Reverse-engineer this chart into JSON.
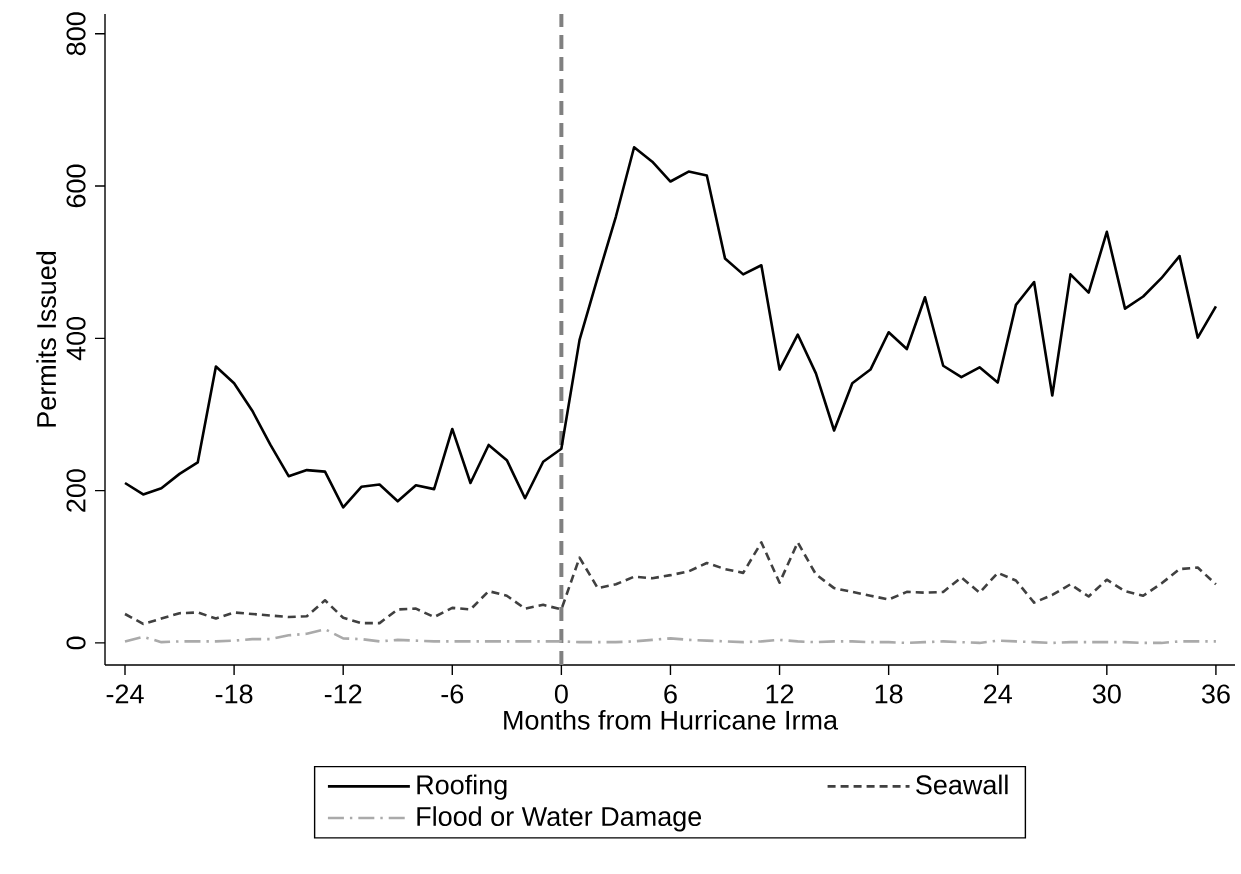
{
  "chart_data": {
    "type": "line",
    "xlabel": "Months from Hurricane Irma",
    "ylabel": "Permits Issued",
    "x": [
      -24,
      -23,
      -22,
      -21,
      -20,
      -19,
      -18,
      -17,
      -16,
      -15,
      -14,
      -13,
      -12,
      -11,
      -10,
      -9,
      -8,
      -7,
      -6,
      -5,
      -4,
      -3,
      -2,
      -1,
      0,
      1,
      2,
      3,
      4,
      5,
      6,
      7,
      8,
      9,
      10,
      11,
      12,
      13,
      14,
      15,
      16,
      17,
      18,
      19,
      20,
      21,
      22,
      23,
      24,
      25,
      26,
      27,
      28,
      29,
      30,
      31,
      32,
      33,
      34,
      35,
      36
    ],
    "series": [
      {
        "name": "Roofing",
        "color": "#000000",
        "line_style": "solid",
        "values": [
          210,
          195,
          203,
          222,
          237,
          363,
          341,
          305,
          260,
          219,
          227,
          225,
          178,
          205,
          208,
          186,
          207,
          202,
          281,
          210,
          260,
          240,
          190,
          238,
          255,
          398,
          480,
          560,
          651,
          632,
          606,
          619,
          614,
          505,
          484,
          496,
          359,
          405,
          354,
          279,
          341,
          359,
          408,
          386,
          454,
          364,
          349,
          362,
          342,
          444,
          474,
          325,
          484,
          460,
          540,
          439,
          455,
          479,
          508,
          401,
          442
        ]
      },
      {
        "name": "Seawall",
        "color": "#404040",
        "line_style": "dashed",
        "values": [
          38,
          25,
          32,
          39,
          40,
          32,
          40,
          38,
          36,
          34,
          35,
          56,
          33,
          26,
          26,
          44,
          45,
          34,
          46,
          44,
          68,
          62,
          45,
          50,
          44,
          112,
          72,
          77,
          87,
          85,
          89,
          94,
          105,
          97,
          92,
          132,
          79,
          132,
          90,
          72,
          67,
          62,
          57,
          67,
          66,
          67,
          86,
          66,
          92,
          82,
          53,
          63,
          77,
          61,
          83,
          68,
          62,
          78,
          97,
          99,
          77
        ]
      },
      {
        "name": "Flood or Water Damage",
        "color": "#aaaaaa",
        "line_style": "dashdot",
        "values": [
          2,
          8,
          1,
          2,
          2,
          2,
          3,
          5,
          5,
          10,
          12,
          18,
          6,
          5,
          2,
          4,
          3,
          2,
          2,
          2,
          2,
          2,
          2,
          2,
          2,
          1,
          1,
          1,
          2,
          4,
          6,
          4,
          3,
          2,
          1,
          2,
          4,
          2,
          1,
          2,
          2,
          1,
          1,
          0,
          1,
          2,
          1,
          0,
          3,
          2,
          1,
          0,
          1,
          1,
          1,
          1,
          0,
          0,
          2,
          2,
          2
        ]
      }
    ],
    "xlim": [
      -25.1,
      37.05
    ],
    "ylim": [
      -29,
      826
    ],
    "xticks": [
      -24,
      -18,
      -12,
      -6,
      0,
      6,
      12,
      18,
      24,
      30,
      36
    ],
    "yticks": [
      0,
      200,
      400,
      600,
      800
    ],
    "ref_lines": [
      {
        "axis": "x",
        "value": 0,
        "color": "#808080",
        "line_style": "dashed"
      }
    ],
    "grid": false,
    "legend": "bottom",
    "marker": "none"
  }
}
